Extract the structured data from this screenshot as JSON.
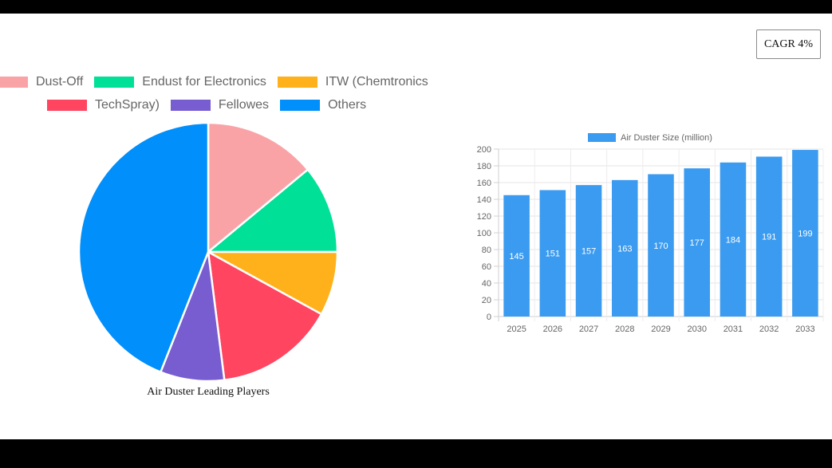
{
  "badge": {
    "label": "CAGR 4%"
  },
  "chart_data": [
    {
      "type": "pie",
      "title": "Air Duster Leading Players",
      "legend_position": "top",
      "slices": [
        {
          "label": "Dust-Off",
          "value": 14,
          "color": "#F9A3A7"
        },
        {
          "label": "Endust for Electronics",
          "value": 11,
          "color": "#00E096"
        },
        {
          "label": "ITW (Chemtronics",
          "value": 8,
          "color": "#FFB11B"
        },
        {
          "label": "TechSpray)",
          "value": 15,
          "color": "#FF4560"
        },
        {
          "label": "Fellowes",
          "value": 8,
          "color": "#775DD0"
        },
        {
          "label": "Others",
          "value": 44,
          "color": "#008FFB"
        }
      ]
    },
    {
      "type": "bar",
      "legend_position": "top",
      "categories": [
        "2025",
        "2026",
        "2027",
        "2028",
        "2029",
        "2030",
        "2031",
        "2032",
        "2033"
      ],
      "series": [
        {
          "name": "Air Duster Size (million)",
          "values": [
            145,
            151,
            157,
            163,
            170,
            177,
            184,
            191,
            199
          ],
          "color": "#3A9BF0"
        }
      ],
      "ylim": [
        0,
        200
      ],
      "yticks": [
        0,
        20,
        40,
        60,
        80,
        100,
        120,
        140,
        160,
        180,
        200
      ],
      "grid": true,
      "data_labels": true
    }
  ]
}
